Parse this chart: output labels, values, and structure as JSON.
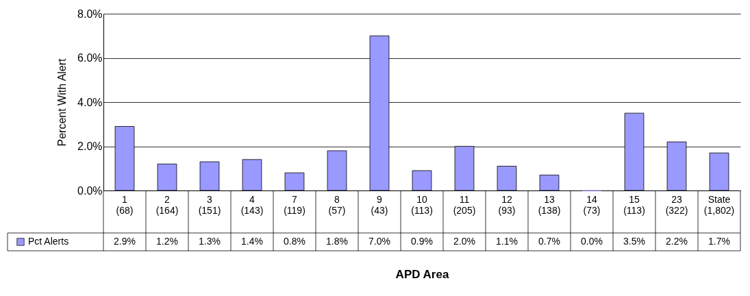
{
  "chart_data": {
    "type": "bar",
    "xlabel": "APD Area",
    "ylabel": "Percent With Alert",
    "categories": [
      "1\n(68)",
      "2\n(164)",
      "3\n(151)",
      "4\n(143)",
      "7\n(119)",
      "8\n(57)",
      "9\n(43)",
      "10\n(113)",
      "11\n(205)",
      "12\n(93)",
      "13\n(138)",
      "14\n(73)",
      "15\n(113)",
      "23\n(322)",
      "State\n(1,802)"
    ],
    "series": [
      {
        "name": "Pct Alerts",
        "color": "#9999ff",
        "values": [
          2.9,
          1.2,
          1.3,
          1.4,
          0.8,
          1.8,
          7.0,
          0.9,
          2.0,
          1.1,
          0.7,
          0.0,
          3.5,
          2.2,
          1.7
        ],
        "value_labels": [
          "2.9%",
          "1.2%",
          "1.3%",
          "1.4%",
          "0.8%",
          "1.8%",
          "7.0%",
          "0.9%",
          "2.0%",
          "1.1%",
          "0.7%",
          "0.0%",
          "3.5%",
          "2.2%",
          "1.7%"
        ]
      }
    ],
    "ylim": [
      0,
      8
    ],
    "yticks": [
      {
        "value": 0,
        "label": "0.0%"
      },
      {
        "value": 2,
        "label": "2.0%"
      },
      {
        "value": 4,
        "label": "4.0%"
      },
      {
        "value": 6,
        "label": "6.0%"
      },
      {
        "value": 8,
        "label": "8.0%"
      }
    ],
    "grid": "y",
    "legend": "bottom left"
  }
}
